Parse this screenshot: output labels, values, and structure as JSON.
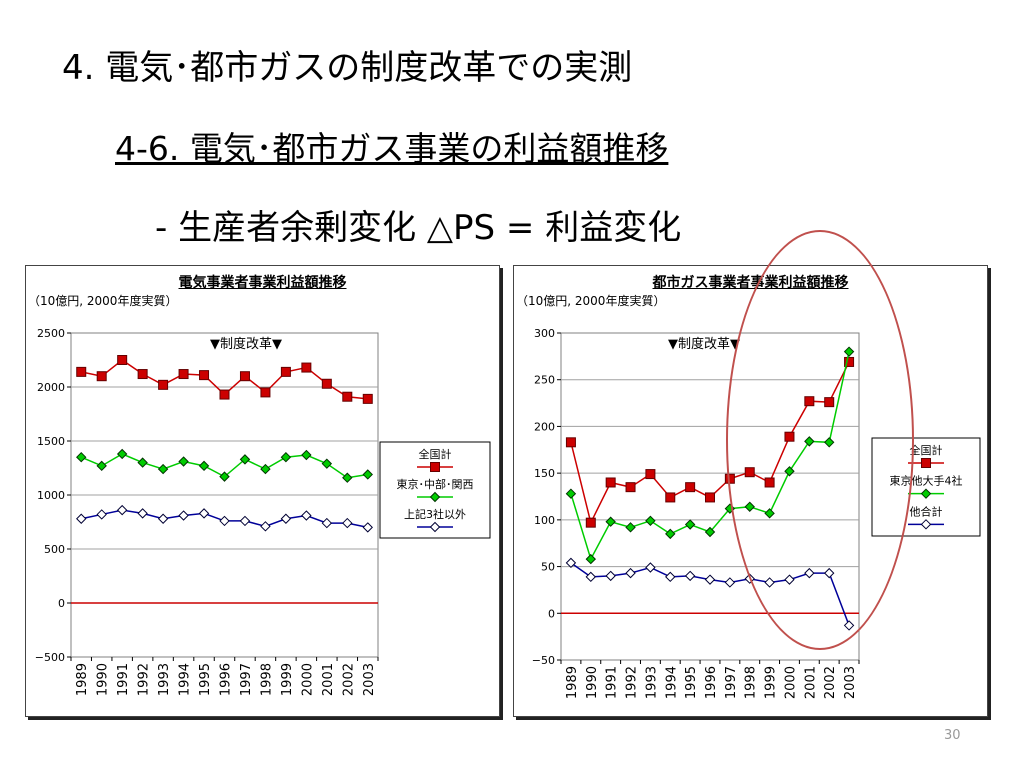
{
  "slide": {
    "title": "4. 電気･都市ガスの制度改革での実測",
    "subtitle": "4-6. 電気･都市ガス事業の利益額推移",
    "subtitle2": "- 生産者余剰変化 △PS = 利益変化",
    "page_number": "30"
  },
  "colors": {
    "national": "#cc0000",
    "big3": "#00cc00",
    "others": "#000099",
    "zero_line": "#cc0000",
    "highlight_ellipse": "#c0504d"
  },
  "chart_data": [
    {
      "type": "line",
      "title": "電気事業者事業利益額推移",
      "unit": "（10億円, 2000年度実質）",
      "annotation": "▼制度改革▼",
      "categories": [
        "1989",
        "1990",
        "1991",
        "1992",
        "1993",
        "1994",
        "1995",
        "1996",
        "1997",
        "1998",
        "1999",
        "2000",
        "2001",
        "2002",
        "2003"
      ],
      "ylim": [
        -500,
        2500
      ],
      "yticks": [
        2500,
        2000,
        1500,
        1000,
        500,
        0,
        -500
      ],
      "ytick_labels": [
        "2500",
        "2000",
        "1500",
        "1000",
        "500",
        "0",
        "−500"
      ],
      "grid": true,
      "legend_position": "right",
      "series": [
        {
          "name": "全国計",
          "values": [
            2140,
            2100,
            2250,
            2120,
            2020,
            2120,
            2110,
            1930,
            2100,
            1950,
            2140,
            2180,
            2030,
            1910,
            1890
          ]
        },
        {
          "name": "東京･中部･関西",
          "values": [
            1350,
            1270,
            1380,
            1300,
            1240,
            1310,
            1270,
            1170,
            1330,
            1240,
            1350,
            1370,
            1290,
            1160,
            1190
          ]
        },
        {
          "name": "上記3社以外",
          "values": [
            780,
            820,
            860,
            830,
            780,
            810,
            830,
            760,
            760,
            710,
            780,
            810,
            740,
            740,
            700
          ]
        }
      ]
    },
    {
      "type": "line",
      "title": "都市ガス事業者事業利益額推移",
      "unit": "（10億円, 2000年度実質）",
      "annotation": "▼制度改革▼",
      "categories": [
        "1989",
        "1990",
        "1991",
        "1992",
        "1993",
        "1994",
        "1995",
        "1996",
        "1997",
        "1998",
        "1999",
        "2000",
        "2001",
        "2002",
        "2003"
      ],
      "ylim": [
        -50,
        300
      ],
      "yticks": [
        300,
        250,
        200,
        150,
        100,
        50,
        0,
        -50
      ],
      "ytick_labels": [
        "300",
        "250",
        "200",
        "150",
        "100",
        "50",
        "0",
        "−50"
      ],
      "grid": true,
      "legend_position": "right",
      "series": [
        {
          "name": "全国計",
          "values": [
            183,
            97,
            140,
            135,
            149,
            124,
            135,
            124,
            144,
            151,
            140,
            189,
            227,
            226,
            269
          ]
        },
        {
          "name": "東京他大手4社",
          "values": [
            128,
            58,
            98,
            92,
            99,
            85,
            95,
            87,
            112,
            114,
            107,
            152,
            184,
            183,
            280
          ]
        },
        {
          "name": "他合計",
          "values": [
            54,
            39,
            40,
            43,
            49,
            39,
            40,
            36,
            33,
            37,
            33,
            36,
            43,
            43,
            -13
          ]
        }
      ]
    }
  ]
}
